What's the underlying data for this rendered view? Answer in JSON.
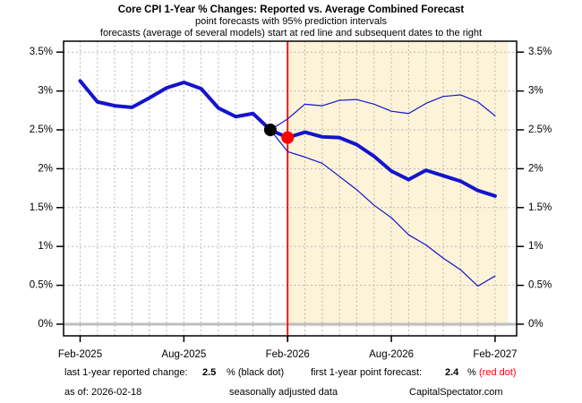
{
  "title": {
    "line1": "Core CPI 1-Year % Changes: Reported vs. Average Combined Forecast",
    "line2": "point forecasts with 95% prediction intervals",
    "line3": "forecasts (average of several models) start at red line and subsequent dates to the right"
  },
  "chart_data": {
    "type": "line",
    "title": "Core CPI 1-Year % Changes: Reported vs. Average Combined Forecast",
    "ylim": [
      -0.15,
      3.65
    ],
    "grid": true,
    "months": [
      "Feb-2025",
      "Mar-2025",
      "Apr-2025",
      "May-2025",
      "Jun-2025",
      "Jul-2025",
      "Aug-2025",
      "Sep-2025",
      "Oct-2025",
      "Nov-2025",
      "Dec-2025",
      "Jan-2026",
      "Feb-2026",
      "Mar-2026",
      "Apr-2026",
      "May-2026",
      "Jun-2026",
      "Jul-2026",
      "Aug-2026",
      "Sep-2026",
      "Oct-2026",
      "Nov-2026",
      "Dec-2026",
      "Jan-2027",
      "Feb-2027"
    ],
    "x_ticks": [
      {
        "label": "Feb-2025",
        "month_index": 0
      },
      {
        "label": "Aug-2025",
        "month_index": 6
      },
      {
        "label": "Feb-2026",
        "month_index": 12
      },
      {
        "label": "Aug-2026",
        "month_index": 18
      },
      {
        "label": "Feb-2027",
        "month_index": 24
      }
    ],
    "y_ticks": [
      {
        "value": 0,
        "label": "0%"
      },
      {
        "value": 0.5,
        "label": "0.5%"
      },
      {
        "value": 1,
        "label": "1%"
      },
      {
        "value": 1.5,
        "label": "1.5%"
      },
      {
        "value": 2,
        "label": "2%"
      },
      {
        "value": 2.5,
        "label": "2.5%"
      },
      {
        "value": 3,
        "label": "3%"
      },
      {
        "value": 3.5,
        "label": "3.5%"
      }
    ],
    "series": [
      {
        "name": "reported",
        "start_month_index": 0,
        "values": [
          3.13,
          2.86,
          2.81,
          2.79,
          2.91,
          3.04,
          3.11,
          3.03,
          2.78,
          2.67,
          2.71,
          2.5
        ]
      },
      {
        "name": "point-forecast",
        "start_month_index": 11,
        "values": [
          2.5,
          2.4,
          2.47,
          2.41,
          2.4,
          2.31,
          2.16,
          1.97,
          1.86,
          1.98,
          1.91,
          1.84,
          1.72,
          1.65
        ]
      },
      {
        "name": "upper-95-band",
        "start_month_index": 11,
        "values": [
          2.5,
          2.64,
          2.83,
          2.81,
          2.88,
          2.89,
          2.83,
          2.74,
          2.71,
          2.84,
          2.93,
          2.95,
          2.86,
          2.68
        ]
      },
      {
        "name": "lower-95-band",
        "start_month_index": 11,
        "values": [
          2.5,
          2.22,
          2.15,
          2.07,
          1.9,
          1.73,
          1.53,
          1.37,
          1.15,
          1.02,
          0.85,
          0.7,
          0.49,
          0.62
        ]
      }
    ],
    "black_dot": {
      "month_index": 11,
      "value": 2.5
    },
    "red_dot": {
      "month_index": 12,
      "value": 2.4
    },
    "forecast_region": {
      "start_month_index": 12,
      "end_month_index": 24.75
    },
    "zero_line_value": 0,
    "colors": {
      "line_blue": "#1414cc",
      "band_blue": "#1414cc",
      "forecast_bg": "#fcf3d8",
      "red_line": "#ff0000",
      "zero_line": "#bebebe",
      "grid": "#b8b8b8",
      "black_dot": "#000000",
      "red_dot": "#ff0000",
      "frame": "#000000"
    },
    "legend_position": "none"
  },
  "footer": {
    "label_reported": "last 1-year reported change:",
    "value_reported": "2.5",
    "unit_reported": "% (black dot)",
    "label_forecast": "first 1-year point forecast:",
    "value_forecast": "2.4",
    "unit_forecast": "%",
    "red_note": "(red dot)",
    "as_of": "as of: 2026-02-18",
    "note": "seasonally adjusted data",
    "credit": "CapitalSpectator.com"
  }
}
